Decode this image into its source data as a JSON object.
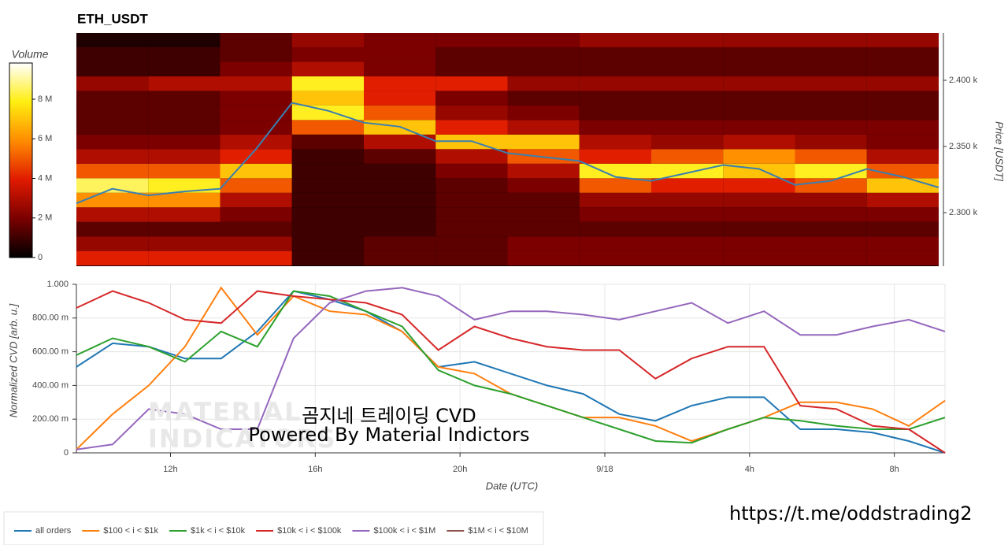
{
  "chart_data": [
    {
      "type": "heatmap",
      "title": "ETH_USDT",
      "y_label": "Price [USDT]",
      "colorbar_label": "Volume",
      "xlim": [
        9.4,
        33.4
      ],
      "ylim": [
        2259.5,
        2435.7
      ],
      "yticks": [
        {
          "value": 2300,
          "label": "2.300 k"
        },
        {
          "value": 2350,
          "label": "2.350 k"
        },
        {
          "value": 2400,
          "label": "2.400 k"
        }
      ],
      "clim": [
        0,
        9830000
      ],
      "cticks": [
        0,
        {
          "value": 2000000,
          "label": "2 M"
        },
        {
          "value": 4000000,
          "label": "4 M"
        },
        {
          "value": 6000000,
          "label": "6 M"
        },
        {
          "value": 8000000,
          "label": "8 M"
        }
      ],
      "colorscale": [
        "#000000",
        "#7a0000",
        "#e01a00",
        "#ff8c00",
        "#ffee10",
        "#ffffff"
      ],
      "xbins": [
        9.4,
        11.4,
        13.4,
        15.4,
        17.4,
        19.4,
        21.4,
        23.4,
        25.4,
        27.4,
        29.4,
        31.4,
        33.4
      ],
      "ybins": [
        2260,
        2271,
        2282,
        2293,
        2304,
        2315,
        2326,
        2337,
        2348,
        2359,
        2370,
        2381,
        2392,
        2403,
        2414,
        2425,
        2436
      ],
      "z": [
        [
          4000000.0,
          4000000.0,
          4000000.0,
          1000000.0,
          1500000.0,
          1500000.0,
          2000000.0,
          2000000.0,
          2000000.0,
          2000000.0,
          2000000.0,
          2000000.0
        ],
        [
          2500000.0,
          2500000.0,
          2500000.0,
          1000000.0,
          1500000.0,
          1500000.0,
          2000000.0,
          2000000.0,
          2000000.0,
          2000000.0,
          2000000.0,
          2000000.0
        ],
        [
          1500000.0,
          1500000.0,
          1500000.0,
          1000000.0,
          1000000.0,
          1500000.0,
          1500000.0,
          1500000.0,
          1500000.0,
          1500000.0,
          1500000.0,
          1500000.0
        ],
        [
          3000000.0,
          3000000.0,
          2000000.0,
          1000000.0,
          1000000.0,
          1500000.0,
          1500000.0,
          2000000.0,
          2000000.0,
          2000000.0,
          2000000.0,
          2000000.0
        ],
        [
          6000000.0,
          6000000.0,
          3000000.0,
          1000000.0,
          1000000.0,
          1500000.0,
          1500000.0,
          2500000.0,
          2500000.0,
          2500000.0,
          2500000.0,
          3000000.0
        ],
        [
          8500000.0,
          8000000.0,
          5000000.0,
          1000000.0,
          1000000.0,
          1500000.0,
          2000000.0,
          5000000.0,
          4000000.0,
          4000000.0,
          5000000.0,
          7000000.0
        ],
        [
          5000000.0,
          5000000.0,
          7000000.0,
          1000000.0,
          1000000.0,
          2000000.0,
          3000000.0,
          8000000.0,
          8000000.0,
          7000000.0,
          8000000.0,
          5000000.0
        ],
        [
          3000000.0,
          3000000.0,
          4000000.0,
          1000000.0,
          1500000.0,
          3000000.0,
          5000000.0,
          4000000.0,
          5000000.0,
          6000000.0,
          5000000.0,
          3000000.0
        ],
        [
          2000000.0,
          2000000.0,
          3000000.0,
          1500000.0,
          3000000.0,
          7000000.0,
          7000000.0,
          3000000.0,
          2500000.0,
          3000000.0,
          2500000.0,
          2000000.0
        ],
        [
          1500000.0,
          1500000.0,
          2000000.0,
          5000000.0,
          7000000.0,
          4000000.0,
          3000000.0,
          2000000.0,
          2000000.0,
          2000000.0,
          2000000.0,
          2000000.0
        ],
        [
          1500000.0,
          1500000.0,
          2000000.0,
          8000000.0,
          5000000.0,
          2500000.0,
          2000000.0,
          1500000.0,
          1500000.0,
          1500000.0,
          1500000.0,
          1500000.0
        ],
        [
          1500000.0,
          1500000.0,
          2000000.0,
          7000000.0,
          4000000.0,
          2000000.0,
          1500000.0,
          1500000.0,
          1500000.0,
          1500000.0,
          1500000.0,
          1500000.0
        ],
        [
          2500000.0,
          3000000.0,
          3000000.0,
          8000000.0,
          4000000.0,
          4000000.0,
          2500000.0,
          2500000.0,
          2500000.0,
          2500000.0,
          2500000.0,
          2500000.0
        ],
        [
          1000000.0,
          1000000.0,
          2000000.0,
          3000000.0,
          2000000.0,
          1500000.0,
          1500000.0,
          1500000.0,
          1500000.0,
          1500000.0,
          1500000.0,
          1500000.0
        ],
        [
          1000000.0,
          1000000.0,
          1500000.0,
          2000000.0,
          2000000.0,
          1500000.0,
          1500000.0,
          1500000.0,
          1500000.0,
          1500000.0,
          1500000.0,
          1500000.0
        ],
        [
          500000.0,
          500000.0,
          1500000.0,
          2500000.0,
          2000000.0,
          2000000.0,
          2000000.0,
          2500000.0,
          2500000.0,
          2500000.0,
          2500000.0,
          2500000.0
        ]
      ],
      "x": [
        9.4,
        10.4,
        11.4,
        12.4,
        13.4,
        14.4,
        15.4,
        16.4,
        17.4,
        18.4,
        19.4,
        20.4,
        21.4,
        22.4,
        23.4,
        24.4,
        25.4,
        26.4,
        27.4,
        28.4,
        29.4,
        30.4,
        31.4,
        32.4,
        33.4
      ],
      "values": [
        2307,
        2318,
        2313,
        2316,
        2318,
        2348,
        2383,
        2377,
        2368,
        2365,
        2354,
        2354,
        2345,
        2342,
        2339,
        2327,
        2324,
        2330,
        2336,
        2333,
        2321,
        2324,
        2333,
        2327,
        2319
      ],
      "color": "#3a7fb0"
    },
    {
      "type": "line",
      "x_label": "Date (UTC)",
      "y_label": "Normalized CVD [arb. u.]",
      "xlim": [
        9.4,
        33.4
      ],
      "ylim": [
        0,
        1
      ],
      "grid": true,
      "xticks": [
        {
          "value": 12,
          "label": "12h"
        },
        {
          "value": 16,
          "label": "16h"
        },
        {
          "value": 20,
          "label": "20h"
        },
        {
          "value": 24,
          "label": "9/18"
        },
        {
          "value": 28,
          "label": "4h"
        },
        {
          "value": 32,
          "label": "8h"
        }
      ],
      "yticks": [
        0,
        {
          "value": 0.2,
          "label": "200.00 m"
        },
        {
          "value": 0.4,
          "label": "400.00 m"
        },
        {
          "value": 0.6,
          "label": "600.00 m"
        },
        {
          "value": 0.8,
          "label": "800.00 m"
        },
        {
          "value": 1,
          "label": "1.000"
        }
      ],
      "x": [
        9.4,
        10.4,
        11.4,
        12.4,
        13.4,
        14.4,
        15.4,
        16.4,
        17.4,
        18.4,
        19.4,
        20.4,
        21.4,
        22.4,
        23.4,
        24.4,
        25.4,
        26.4,
        27.4,
        28.4,
        29.4,
        30.4,
        31.4,
        32.4,
        33.4
      ],
      "series": [
        {
          "name": "all orders",
          "color": "#1f77b4",
          "values": [
            0.51,
            0.65,
            0.63,
            0.56,
            0.56,
            0.72,
            0.96,
            0.91,
            0.84,
            0.72,
            0.51,
            0.54,
            0.47,
            0.4,
            0.35,
            0.23,
            0.19,
            0.28,
            0.33,
            0.33,
            0.14,
            0.14,
            0.12,
            0.07,
            0
          ]
        },
        {
          "name": "$100 < i < $1k",
          "color": "#ff7f0e",
          "values": [
            0.02,
            0.23,
            0.4,
            0.63,
            0.98,
            0.7,
            0.93,
            0.84,
            0.82,
            0.72,
            0.51,
            0.47,
            0.35,
            0.28,
            0.21,
            0.21,
            0.16,
            0.07,
            0.14,
            0.21,
            0.3,
            0.3,
            0.26,
            0.16,
            0.31
          ]
        },
        {
          "name": "$1k < i < $10k",
          "color": "#2ca02c",
          "values": [
            0.58,
            0.68,
            0.63,
            0.54,
            0.72,
            0.63,
            0.96,
            0.93,
            0.84,
            0.75,
            0.49,
            0.4,
            0.35,
            0.28,
            0.21,
            0.14,
            0.07,
            0.06,
            0.14,
            0.21,
            0.19,
            0.16,
            0.14,
            0.14,
            0.21
          ]
        },
        {
          "name": "$10k < i < $100k",
          "color": "#d62728",
          "values": [
            0.86,
            0.96,
            0.89,
            0.79,
            0.77,
            0.96,
            0.93,
            0.91,
            0.89,
            0.82,
            0.61,
            0.75,
            0.68,
            0.63,
            0.61,
            0.61,
            0.44,
            0.56,
            0.63,
            0.63,
            0.28,
            0.26,
            0.16,
            0.14,
            0
          ]
        },
        {
          "name": "$100k < i < $1M",
          "color": "#9467bd",
          "values": [
            0.02,
            0.05,
            0.26,
            0.23,
            0.14,
            0.14,
            0.68,
            0.89,
            0.96,
            0.98,
            0.93,
            0.79,
            0.84,
            0.84,
            0.82,
            0.79,
            0.84,
            0.89,
            0.77,
            0.84,
            0.7,
            0.7,
            0.75,
            0.79,
            0.72
          ]
        },
        {
          "name": "$1M < i < $10M",
          "color": "#8c564b",
          "values": [
            null,
            null,
            null,
            null,
            null,
            null,
            null,
            null,
            null,
            null,
            null,
            null,
            null,
            null,
            null,
            null,
            null,
            null,
            null,
            null,
            null,
            null,
            null,
            null,
            null
          ]
        }
      ]
    }
  ],
  "watermark": {
    "logo": [
      "MATERIAL",
      "INDICATORS"
    ],
    "lines": [
      "곰지네 트레이딩 CVD",
      "Powered By Material Indictors"
    ]
  },
  "footer_url": "https://t.me/oddstrading2"
}
